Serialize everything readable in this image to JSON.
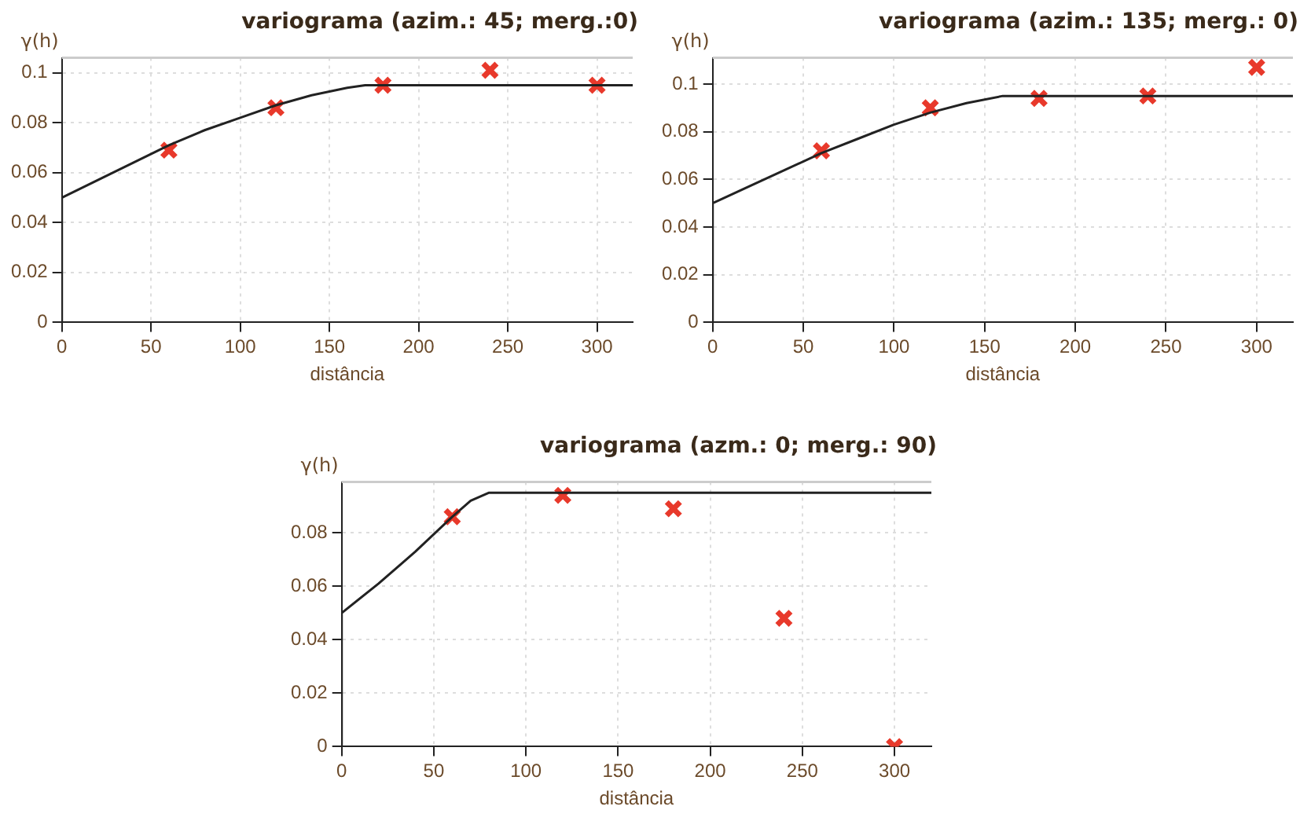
{
  "chart_data": [
    {
      "type": "scatter",
      "title": "variograma (azim.: 45; merg.:0)",
      "xlabel": "distância",
      "ylabel": "γ(h)",
      "xlim": [
        0,
        320
      ],
      "ylim": [
        0,
        0.106
      ],
      "xticks": [
        0,
        50,
        100,
        150,
        200,
        250,
        300
      ],
      "yticks": [
        0,
        0.02,
        0.04,
        0.06,
        0.08,
        0.1
      ],
      "grid": true,
      "legend": false,
      "series": [
        {
          "type": "line",
          "color": "#222222",
          "marker": "none",
          "x": [
            0,
            0,
            20,
            40,
            60,
            80,
            100,
            120,
            140,
            160,
            170,
            320
          ],
          "values": [
            0,
            0.05,
            0.057,
            0.064,
            0.071,
            0.077,
            0.082,
            0.087,
            0.091,
            0.094,
            0.095,
            0.095
          ]
        },
        {
          "type": "scatter",
          "color": "#e8392b",
          "marker": "cross",
          "x": [
            60,
            120,
            180,
            240,
            300
          ],
          "values": [
            0.069,
            0.086,
            0.095,
            0.101,
            0.095
          ]
        }
      ]
    },
    {
      "type": "scatter",
      "title": "variograma (azim.: 135; merg.: 0)",
      "xlabel": "distância",
      "ylabel": "γ(h)",
      "xlim": [
        0,
        320
      ],
      "ylim": [
        0,
        0.111
      ],
      "xticks": [
        0,
        50,
        100,
        150,
        200,
        250,
        300
      ],
      "yticks": [
        0,
        0.02,
        0.04,
        0.06,
        0.08,
        0.1
      ],
      "grid": true,
      "legend": false,
      "series": [
        {
          "type": "line",
          "color": "#222222",
          "marker": "none",
          "x": [
            0,
            0,
            20,
            40,
            60,
            80,
            100,
            120,
            140,
            160,
            170,
            320
          ],
          "values": [
            0,
            0.05,
            0.057,
            0.064,
            0.071,
            0.077,
            0.083,
            0.088,
            0.092,
            0.095,
            0.095,
            0.095
          ]
        },
        {
          "type": "scatter",
          "color": "#e8392b",
          "marker": "cross",
          "x": [
            60,
            120,
            180,
            240,
            300
          ],
          "values": [
            0.072,
            0.09,
            0.094,
            0.095,
            0.107
          ]
        }
      ]
    },
    {
      "type": "scatter",
      "title": "variograma (azm.: 0; merg.: 90)",
      "xlabel": "distância",
      "ylabel": "γ(h)",
      "xlim": [
        0,
        320
      ],
      "ylim": [
        0,
        0.099
      ],
      "xticks": [
        0,
        50,
        100,
        150,
        200,
        250,
        300
      ],
      "yticks": [
        0,
        0.02,
        0.04,
        0.06,
        0.08
      ],
      "grid": true,
      "legend": false,
      "series": [
        {
          "type": "line",
          "color": "#222222",
          "marker": "none",
          "x": [
            0,
            0,
            20,
            40,
            60,
            70,
            80,
            320
          ],
          "values": [
            0,
            0.05,
            0.061,
            0.073,
            0.086,
            0.092,
            0.095,
            0.095
          ]
        },
        {
          "type": "scatter",
          "color": "#e8392b",
          "marker": "cross",
          "x": [
            60,
            120,
            180,
            240,
            300
          ],
          "values": [
            0.086,
            0.094,
            0.089,
            0.048,
            0
          ]
        }
      ]
    }
  ]
}
